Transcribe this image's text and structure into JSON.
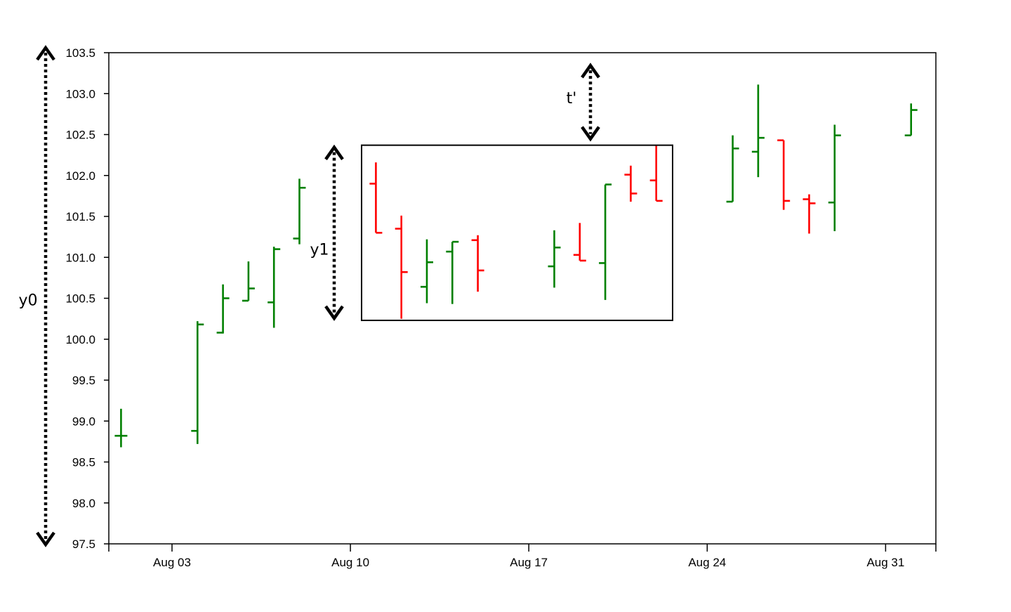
{
  "chart_data": {
    "type": "ohlc",
    "title": "",
    "xlabel": "",
    "ylabel": "",
    "ylim": [
      97.5,
      103.5
    ],
    "yticks": [
      "97.5",
      "98.0",
      "98.5",
      "99.0",
      "99.5",
      "100.0",
      "100.5",
      "101.0",
      "101.5",
      "102.0",
      "102.5",
      "103.0",
      "103.5"
    ],
    "xrange": [
      "2020-08-01 12:00",
      "2020-09-02"
    ],
    "xticks": [
      {
        "date": "2020-08-03",
        "label": "Aug 03"
      },
      {
        "date": "2020-08-10",
        "label": "Aug 10"
      },
      {
        "date": "2020-08-17",
        "label": "Aug 17"
      },
      {
        "date": "2020-08-24",
        "label": "Aug 24"
      },
      {
        "date": "2020-08-31",
        "label": "Aug 31"
      }
    ],
    "grid": false,
    "colors": {
      "increasing": "#008000",
      "decreasing": "#ff0000"
    },
    "bars": [
      {
        "date": "2020-08-01",
        "open": 98.82,
        "high": 99.15,
        "low": 98.68,
        "close": 98.82
      },
      {
        "date": "2020-08-04",
        "open": 98.88,
        "high": 100.22,
        "low": 98.72,
        "close": 100.18
      },
      {
        "date": "2020-08-05",
        "open": 100.08,
        "high": 100.67,
        "low": 100.07,
        "close": 100.5
      },
      {
        "date": "2020-08-06",
        "open": 100.47,
        "high": 100.95,
        "low": 100.47,
        "close": 100.62
      },
      {
        "date": "2020-08-07",
        "open": 100.45,
        "high": 101.13,
        "low": 100.14,
        "close": 101.1
      },
      {
        "date": "2020-08-08",
        "open": 101.23,
        "high": 101.96,
        "low": 101.16,
        "close": 101.85
      },
      {
        "date": "2020-08-11",
        "open": 101.9,
        "high": 102.16,
        "low": 101.3,
        "close": 101.3
      },
      {
        "date": "2020-08-12",
        "open": 101.35,
        "high": 101.51,
        "low": 100.25,
        "close": 100.82
      },
      {
        "date": "2020-08-13",
        "open": 100.64,
        "high": 101.22,
        "low": 100.44,
        "close": 100.94
      },
      {
        "date": "2020-08-14",
        "open": 101.07,
        "high": 101.19,
        "low": 100.43,
        "close": 101.19
      },
      {
        "date": "2020-08-15",
        "open": 101.21,
        "high": 101.27,
        "low": 100.58,
        "close": 100.84
      },
      {
        "date": "2020-08-18",
        "open": 100.89,
        "high": 101.33,
        "low": 100.63,
        "close": 101.12
      },
      {
        "date": "2020-08-19",
        "open": 101.03,
        "high": 101.42,
        "low": 100.96,
        "close": 100.96
      },
      {
        "date": "2020-08-20",
        "open": 100.93,
        "high": 101.89,
        "low": 100.48,
        "close": 101.89
      },
      {
        "date": "2020-08-21",
        "open": 102.01,
        "high": 102.12,
        "low": 101.68,
        "close": 101.78
      },
      {
        "date": "2020-08-22",
        "open": 101.94,
        "high": 102.37,
        "low": 101.69,
        "close": 101.69
      },
      {
        "date": "2020-08-25",
        "open": 101.68,
        "high": 102.49,
        "low": 101.68,
        "close": 102.33
      },
      {
        "date": "2020-08-26",
        "open": 102.29,
        "high": 103.11,
        "low": 101.98,
        "close": 102.46
      },
      {
        "date": "2020-08-27",
        "open": 102.43,
        "high": 102.43,
        "low": 101.58,
        "close": 101.69
      },
      {
        "date": "2020-08-28",
        "open": 101.71,
        "high": 101.77,
        "low": 101.29,
        "close": 101.66
      },
      {
        "date": "2020-08-29",
        "open": 101.67,
        "high": 102.62,
        "low": 101.32,
        "close": 102.49
      },
      {
        "date": "2020-09-01",
        "open": 102.49,
        "high": 102.88,
        "low": 102.49,
        "close": 102.8
      }
    ],
    "annotations": {
      "y0": {
        "label": "y0",
        "y_from": 97.5,
        "y_to": 103.5
      },
      "y1": {
        "label": "y1",
        "y_from": 100.23,
        "y_to": 102.37
      },
      "t_prime": {
        "label": "t'",
        "y_from": 102.37,
        "y_to": 103.37
      },
      "zoom_box": {
        "x_from": "2020-08-11",
        "x_to": "2020-08-22",
        "y_from": 100.23,
        "y_to": 102.37
      }
    }
  }
}
